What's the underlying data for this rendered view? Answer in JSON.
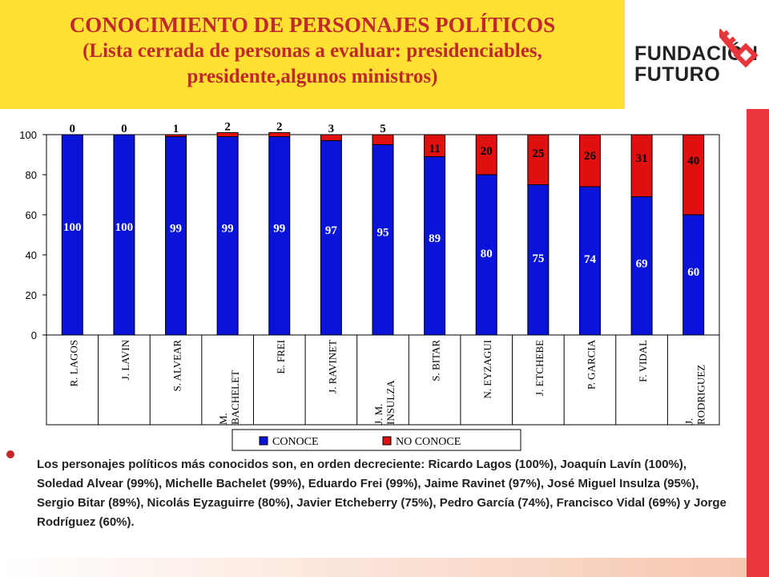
{
  "title": {
    "line1": "CONOCIMIENTO DE PERSONAJES POLÍTICOS",
    "line2": "(Lista cerrada de personas a evaluar: presidenciables, presidente,algunos ministros)"
  },
  "logo": {
    "line1": "FUNDACIÓN",
    "line2": "FUTURO",
    "icon": "key-icon"
  },
  "colors": {
    "conoce": "#0A14D8",
    "no_conoce": "#E01010",
    "title_bg": "#FFE033",
    "title_text": "#C0282A",
    "accent": "#E8363A"
  },
  "chart_data": {
    "type": "bar",
    "stacked": true,
    "categories": [
      "R. LAGOS",
      "J. LAVIN",
      "S. ALVEAR",
      "M. BACHELET",
      "E. FREI",
      "J. RAVINET",
      "J. M. INSULZA",
      "S. BITAR",
      "N. EYZAGUI",
      "J. ETCHEBE",
      "P. GARCIA",
      "F. VIDAL",
      "J. RODRIGUEZ"
    ],
    "category_lines": [
      [
        "R. LAGOS"
      ],
      [
        "J. LAVIN"
      ],
      [
        "S. ALVEAR"
      ],
      [
        "M.",
        "BACHELET"
      ],
      [
        "E. FREI"
      ],
      [
        "J. RAVINET"
      ],
      [
        "J. M.",
        "INSULZA"
      ],
      [
        "S. BITAR"
      ],
      [
        "N. EYZAGUI"
      ],
      [
        "J. ETCHEBE"
      ],
      [
        "P. GARCIA"
      ],
      [
        "F. VIDAL"
      ],
      [
        "J.",
        "RODRIGUEZ"
      ]
    ],
    "series": [
      {
        "name": "CONOCE",
        "values": [
          100,
          100,
          99,
          99,
          99,
          97,
          95,
          89,
          80,
          75,
          74,
          69,
          60
        ]
      },
      {
        "name": "NO CONOCE",
        "values": [
          0,
          0,
          1,
          2,
          2,
          3,
          5,
          11,
          20,
          25,
          26,
          31,
          40
        ]
      }
    ],
    "ylim": [
      0,
      100
    ],
    "yticks": [
      0,
      20,
      40,
      60,
      80,
      100
    ],
    "legend_position": "bottom"
  },
  "summary": "Los personajes políticos más conocidos son, en orden decreciente: Ricardo Lagos (100%), Joaquín Lavín (100%), Soledad Alvear (99%), Michelle Bachelet (99%), Eduardo Frei (99%), Jaime Ravinet (97%), José Miguel Insulza (95%), Sergio Bitar (89%), Nicolás Eyzaguirre (80%), Javier Etcheberry (75%), Pedro García (74%), Francisco Vidal (69%) y Jorge Rodríguez (60%)."
}
